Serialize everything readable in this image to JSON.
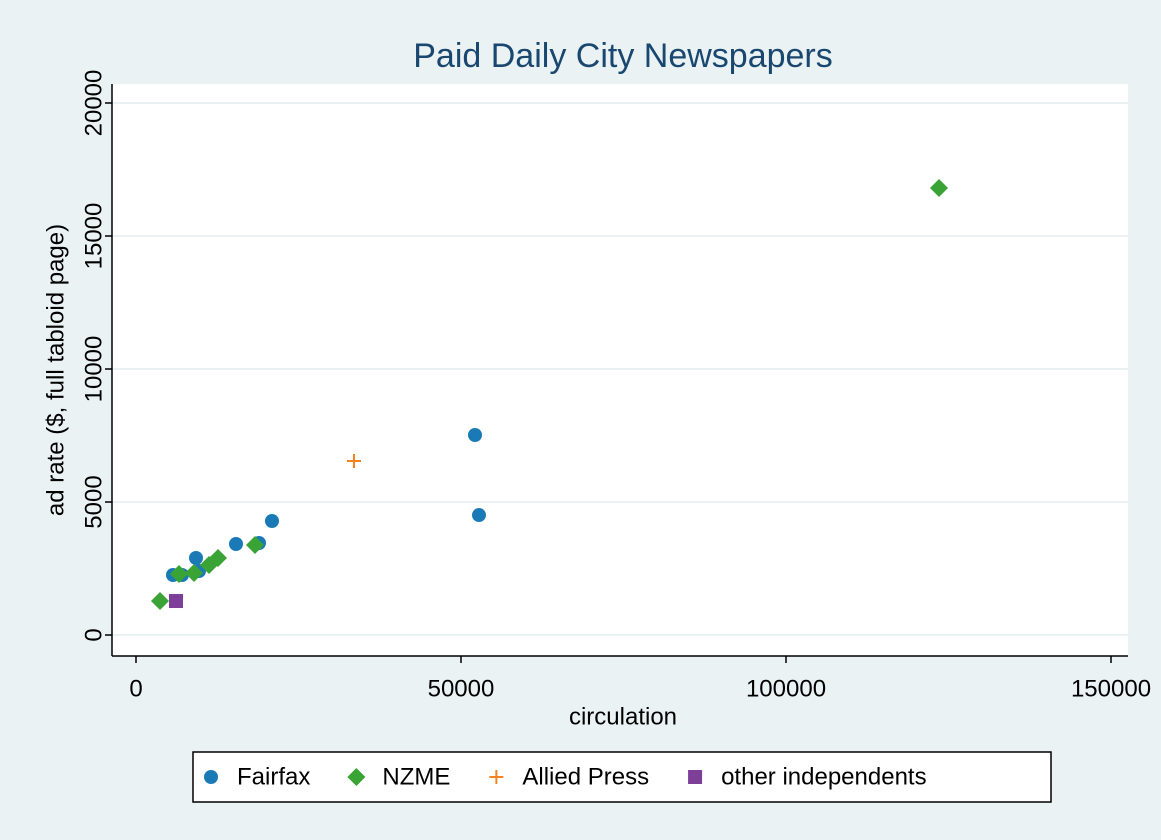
{
  "chart_data": {
    "type": "scatter",
    "title": "Paid Daily City Newspapers",
    "x_label": "circulation",
    "y_label": "ad rate ($, full tabloid page)",
    "xlim": [
      -3692,
      152615
    ],
    "ylim": [
      -789,
      20714
    ],
    "xticks": [
      0,
      50000,
      100000,
      150000
    ],
    "yticks": [
      0,
      5000,
      10000,
      15000,
      20000
    ],
    "grid": true,
    "legend": "bottom",
    "series": [
      {
        "name": "Fairfax",
        "color": "#1a7ab5",
        "marker": "circle",
        "x": [
          5692,
          7077,
          9231,
          9692,
          15385,
          18923,
          20923,
          52154,
          52769
        ],
        "y": [
          2256,
          2256,
          2895,
          2406,
          3421,
          3459,
          4286,
          7519,
          4511
        ]
      },
      {
        "name": "NZME",
        "color": "#3aa335",
        "marker": "diamond",
        "x": [
          3692,
          6615,
          8923,
          11231,
          12615,
          18308,
          123538
        ],
        "y": [
          1278,
          2293,
          2331,
          2632,
          2895,
          3383,
          16805
        ]
      },
      {
        "name": "Allied Press",
        "color": "#f58220",
        "marker": "plus",
        "x": [
          33538
        ],
        "y": [
          6541
        ]
      },
      {
        "name": "other independents",
        "color": "#7d3f98",
        "marker": "square",
        "x": [
          6154
        ],
        "y": [
          1278
        ]
      }
    ]
  }
}
